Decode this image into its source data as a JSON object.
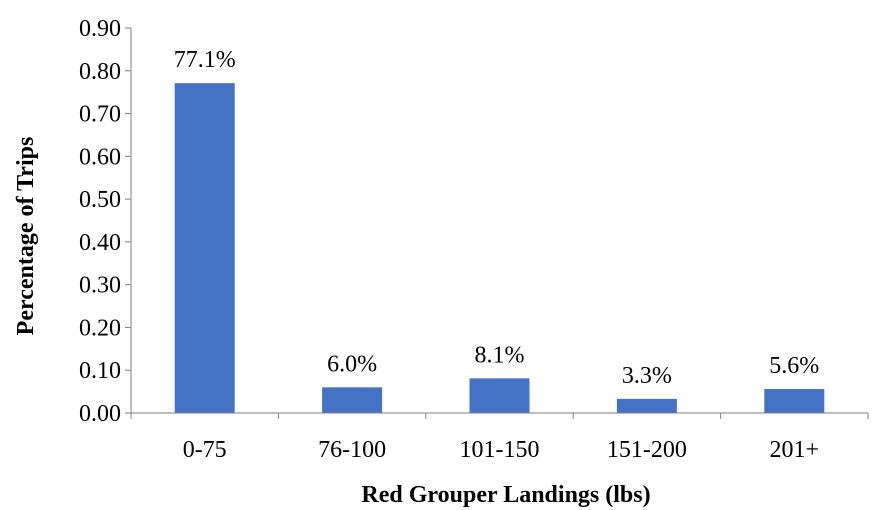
{
  "chart_data": {
    "type": "bar",
    "title": "",
    "xlabel": "Red Grouper Landings (lbs)",
    "ylabel": "Percentage of Trips",
    "categories": [
      "0-75",
      "76-100",
      "101-150",
      "151-200",
      "201+"
    ],
    "values": [
      0.771,
      0.06,
      0.081,
      0.033,
      0.056
    ],
    "data_labels": [
      "77.1%",
      "6.0%",
      "8.1%",
      "3.3%",
      "5.6%"
    ],
    "ylim": [
      0,
      0.9
    ],
    "yticks": [
      "0.00",
      "0.10",
      "0.20",
      "0.30",
      "0.40",
      "0.50",
      "0.60",
      "0.70",
      "0.80",
      "0.90"
    ],
    "grid": false,
    "legend": "none",
    "bar_color": "#4472C4"
  }
}
